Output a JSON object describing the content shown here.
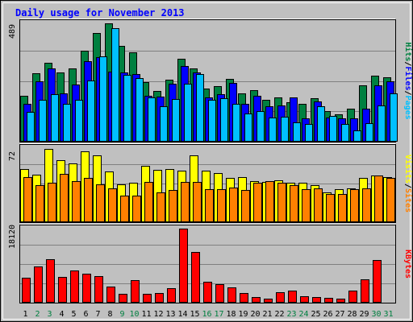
{
  "chart_data": {
    "type": "bar",
    "title": "Daily usage for November 2013",
    "x": [
      1,
      2,
      3,
      4,
      5,
      6,
      7,
      8,
      9,
      10,
      11,
      12,
      13,
      14,
      15,
      16,
      17,
      18,
      19,
      20,
      21,
      22,
      23,
      24,
      25,
      26,
      27,
      28,
      29,
      30,
      31
    ],
    "x_labels": [
      "1",
      "2",
      "3",
      "4",
      "5",
      "6",
      "7",
      "8",
      "9",
      "10",
      "11",
      "12",
      "13",
      "14",
      "15",
      "16",
      "17",
      "18",
      "19",
      "20",
      "21",
      "22",
      "23",
      "24",
      "25",
      "26",
      "27",
      "28",
      "29",
      "30",
      "31"
    ],
    "weekend_days": [
      2,
      3,
      9,
      10,
      16,
      17,
      23,
      24,
      30,
      31
    ],
    "colors": {
      "hits": "#008040",
      "files": "#0000ff",
      "pages": "#00c0ff",
      "visits": "#ffff00",
      "sites": "#ff8000",
      "kbytes": "#ff0000",
      "title": "#0000ff",
      "panel": "#c0c0c0",
      "weekday_label": "#000000",
      "weekend_label": "#008040"
    },
    "panels": [
      {
        "name": "hits_files_pages",
        "ymax_label": "489",
        "ymax": 489,
        "legend": [
          {
            "text": "Hits",
            "color": "#008040"
          },
          {
            "text": "/",
            "color": "#000000"
          },
          {
            "text": "Files",
            "color": "#0000ff"
          },
          {
            "text": "/",
            "color": "#000000"
          },
          {
            "text": "Pages",
            "color": "#00c0ff"
          }
        ],
        "series": [
          {
            "name": "Hits",
            "color": "#008040",
            "values": [
              190,
              282,
              327,
              285,
              304,
              376,
              448,
              488,
              395,
              369,
              246,
              209,
              256,
              343,
              302,
              218,
              229,
              260,
              199,
              213,
              173,
              183,
              163,
              158,
              180,
              126,
              112,
              137,
              234,
              273,
              267
            ]
          },
          {
            "name": "Files",
            "color": "#0000ff",
            "values": [
              156,
              250,
              303,
              201,
              236,
              332,
              350,
              288,
              286,
              281,
              188,
              185,
              241,
              313,
              285,
              183,
              195,
              243,
              155,
              191,
              148,
              149,
              182,
              96,
              166,
              99,
              98,
              97,
              135,
              232,
              248
            ]
          },
          {
            "name": "Pages",
            "color": "#00c0ff",
            "values": [
              124,
              173,
              195,
              157,
              173,
              252,
              353,
              468,
              276,
              262,
              183,
              147,
              175,
              239,
              278,
              173,
              178,
              158,
              117,
              125,
              99,
              102,
              79,
              72,
              146,
              105,
              74,
              48,
              78,
              150,
              200
            ]
          }
        ]
      },
      {
        "name": "visits_sites",
        "ymax_label": "72",
        "ymax": 72,
        "legend": [
          {
            "text": "Visits",
            "color": "#ffff00"
          },
          {
            "text": "/",
            "color": "#000000"
          },
          {
            "text": "Sites",
            "color": "#ff8000"
          }
        ],
        "series": [
          {
            "name": "Visits",
            "color": "#ffff00",
            "values": [
              52,
              46,
              71,
              60,
              57,
              69,
              65,
              49,
              37,
              38,
              55,
              51,
              52,
              50,
              65,
              50,
              48,
              43,
              44,
              40,
              39,
              41,
              38,
              38,
              36,
              29,
              32,
              33,
              43,
              45,
              44
            ]
          },
          {
            "name": "Sites",
            "color": "#ff8000",
            "values": [
              44,
              36,
              38,
              47,
              40,
              43,
              37,
              33,
              26,
              26,
              39,
              29,
              31,
              39,
              39,
              32,
              32,
              34,
              31,
              38,
              40,
              38,
              36,
              32,
              33,
              27,
              27,
              32,
              33,
              45,
              43
            ]
          }
        ]
      },
      {
        "name": "kbytes",
        "ymax_label": "18120",
        "ymax": 18120,
        "legend": [
          {
            "text": "KBytes",
            "color": "#ff0000"
          }
        ],
        "series": [
          {
            "name": "KBytes",
            "color": "#ff0000",
            "values": [
              6080,
              8840,
              10640,
              6340,
              7920,
              7060,
              6440,
              3940,
              2210,
              5610,
              2210,
              2320,
              3470,
              18120,
              12460,
              5090,
              4540,
              3720,
              2310,
              1330,
              990,
              2650,
              2980,
              1550,
              1330,
              1260,
              960,
              2990,
              5730,
              10430,
              60
            ]
          }
        ]
      }
    ],
    "grid": true,
    "xlabel": "",
    "ylabel": ""
  }
}
